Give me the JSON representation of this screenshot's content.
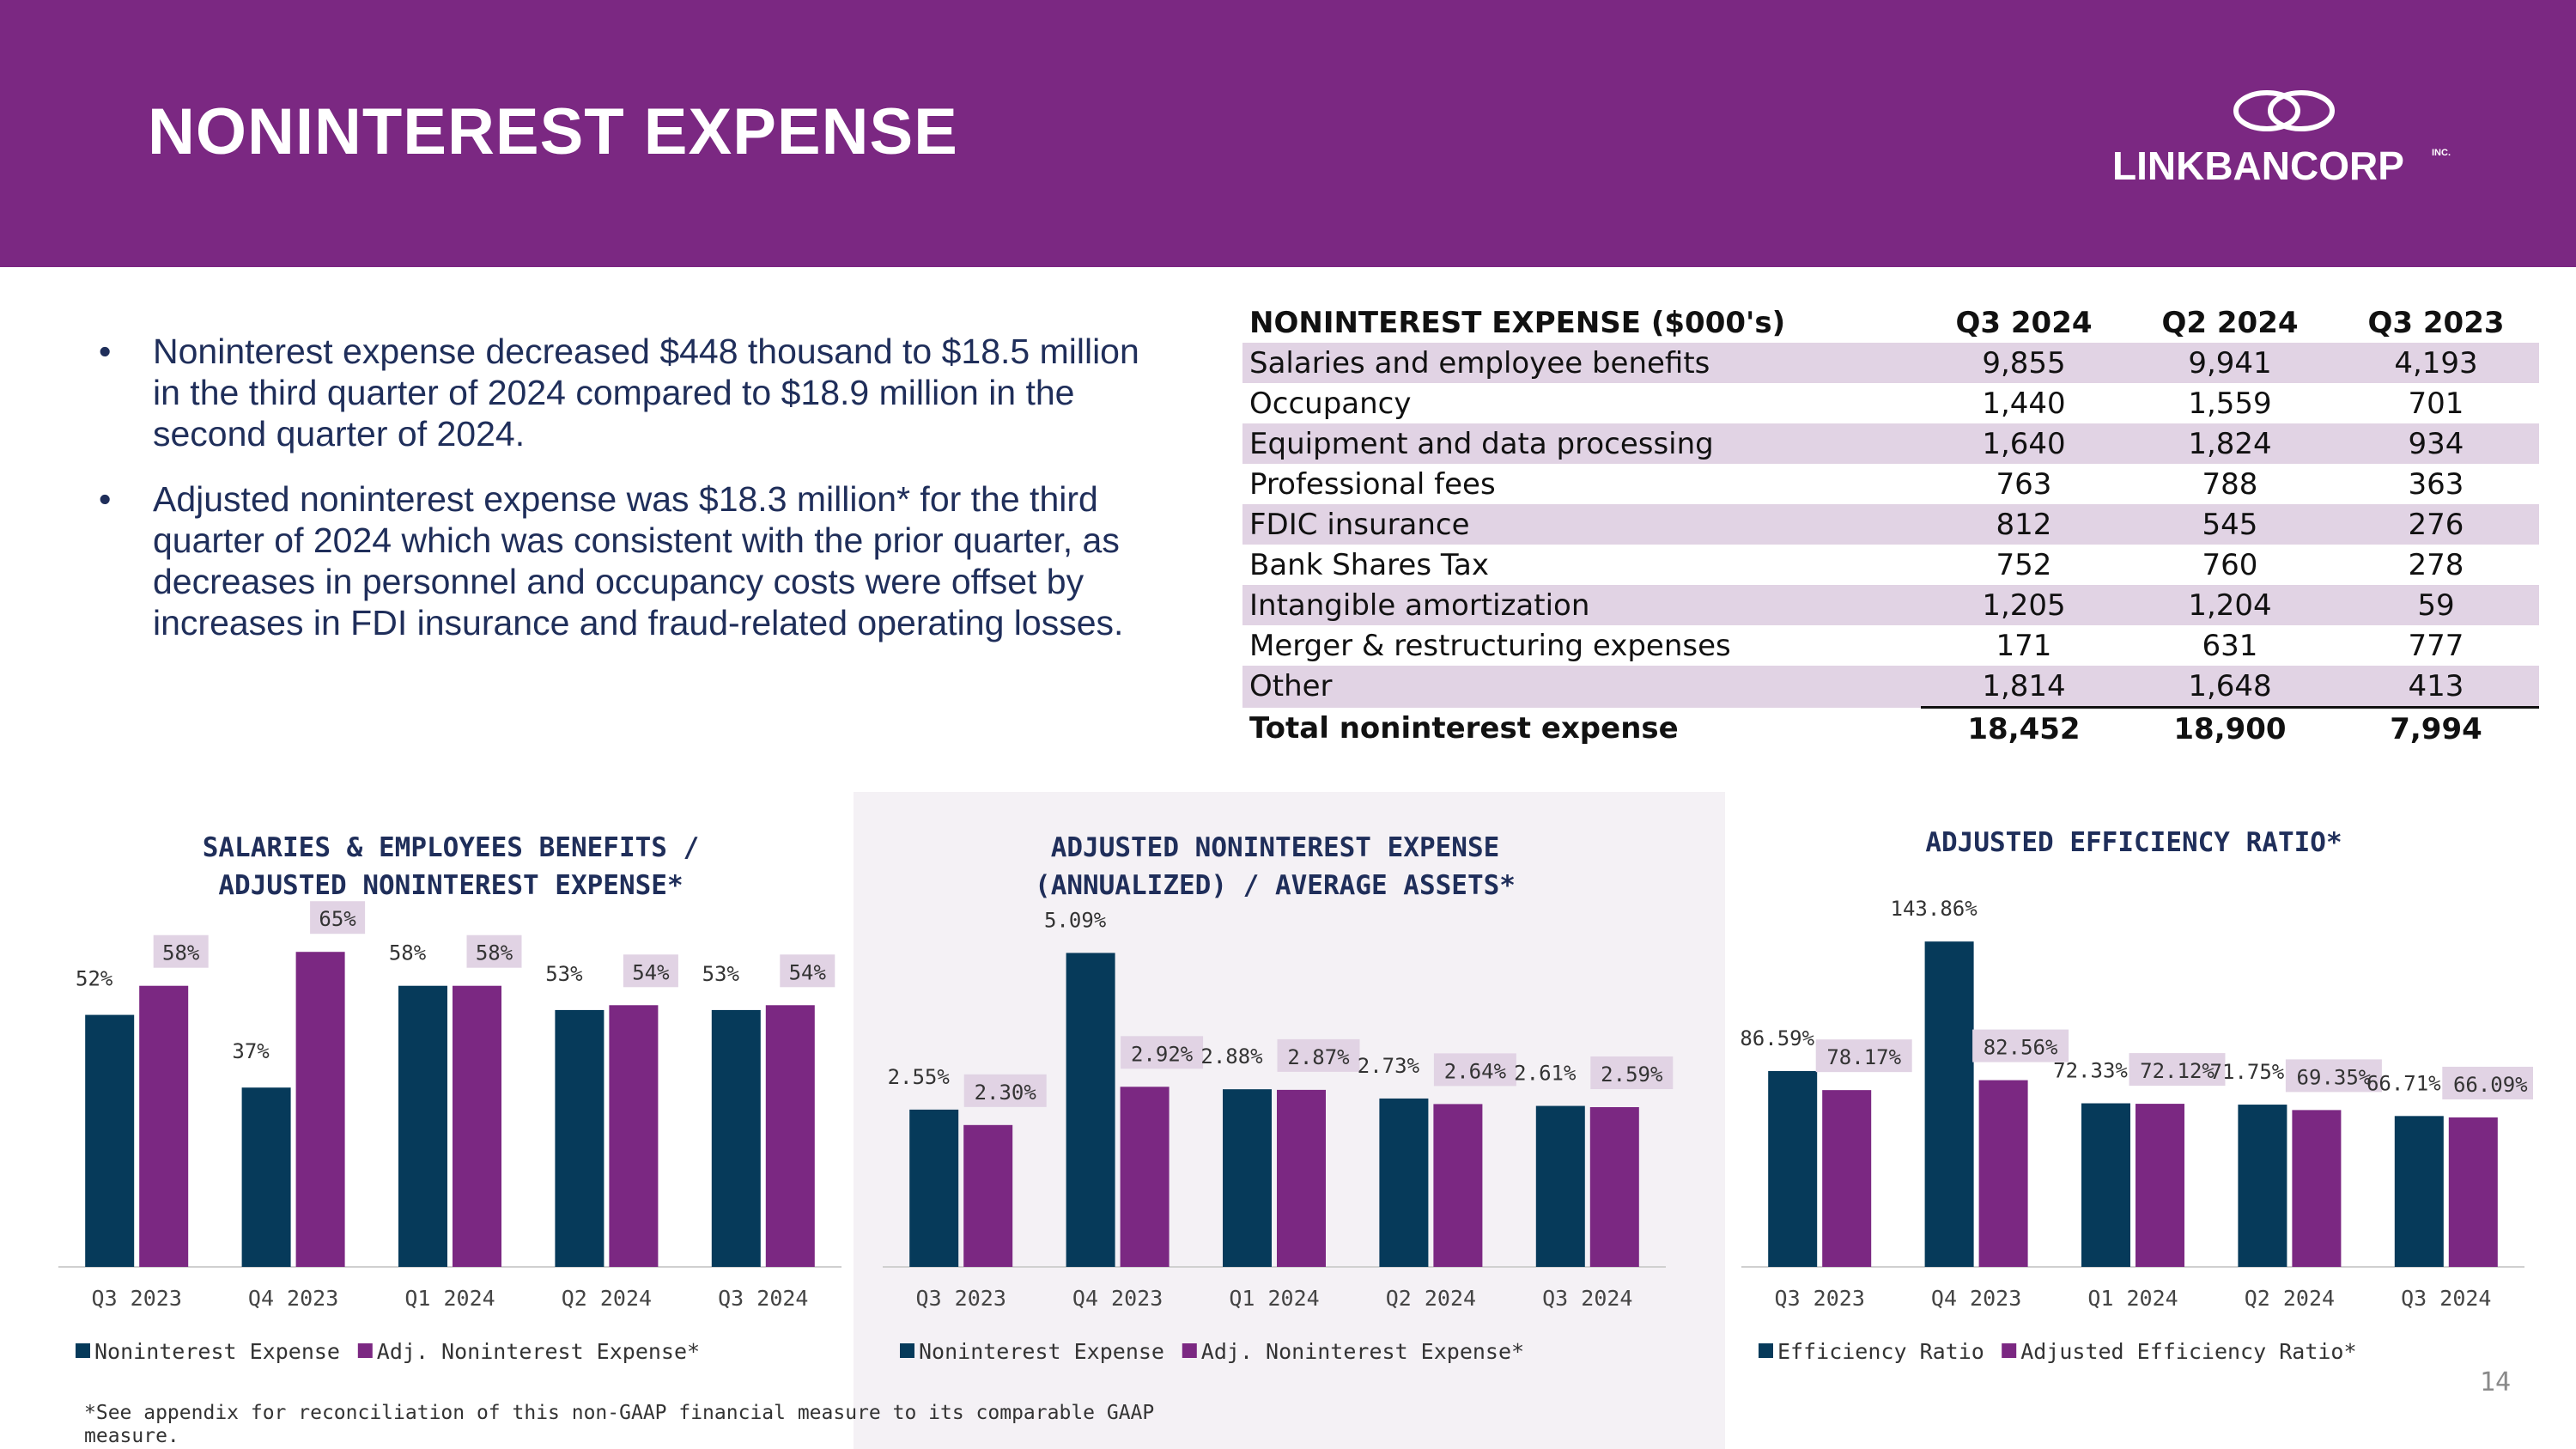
{
  "header": {
    "title": "NONINTEREST EXPENSE",
    "logo_text": "LINKBANCORP",
    "logo_suffix": "INC.",
    "bg_color": "#7B2882"
  },
  "bullets": [
    "Noninterest expense decreased $448 thousand to $18.5 million in the third quarter of 2024 compared to $18.9 million in the second quarter of 2024.",
    "Adjusted noninterest expense was $18.3 million* for the third quarter of 2024 which was consistent with the prior quarter, as decreases in personnel and occupancy costs were offset by increases in FDI insurance and fraud-related operating losses."
  ],
  "expense_table": {
    "headers": [
      "NONINTEREST EXPENSE ($000's)",
      "Q3 2024",
      "Q2 2024",
      "Q3 2023"
    ],
    "rows": [
      {
        "label": "Salaries and employee benefits",
        "values": [
          "9,855",
          "9,941",
          "4,193"
        ]
      },
      {
        "label": "Occupancy",
        "values": [
          "1,440",
          "1,559",
          "701"
        ]
      },
      {
        "label": "Equipment and data processing",
        "values": [
          "1,640",
          "1,824",
          "934"
        ]
      },
      {
        "label": "Professional fees",
        "values": [
          "763",
          "788",
          "363"
        ]
      },
      {
        "label": "FDIC insurance",
        "values": [
          "812",
          "545",
          "276"
        ]
      },
      {
        "label": "Bank Shares Tax",
        "values": [
          "752",
          "760",
          "278"
        ]
      },
      {
        "label": "Intangible amortization",
        "values": [
          "1,205",
          "1,204",
          "59"
        ]
      },
      {
        "label": "Merger & restructuring expenses",
        "values": [
          "171",
          "631",
          "777"
        ]
      },
      {
        "label": "Other",
        "values": [
          "1,814",
          "1,648",
          "413"
        ]
      }
    ],
    "total": {
      "label": "Total noninterest expense",
      "values": [
        "18,452",
        "18,900",
        "7,994"
      ]
    }
  },
  "colors": {
    "navy": "#063A5A",
    "purple": "#7B2882",
    "label_box": "#E1D3E4",
    "text": "#222222"
  },
  "chart_data": [
    {
      "type": "bar",
      "title": [
        "SALARIES & EMPLOYEES BENEFITS /",
        "ADJUSTED NONINTEREST EXPENSE*"
      ],
      "categories": [
        "Q3 2023",
        "Q4 2023",
        "Q1 2024",
        "Q2 2024",
        "Q3 2024"
      ],
      "ylim": [
        0,
        70
      ],
      "unit": "%",
      "series": [
        {
          "name": "Noninterest Expense",
          "values": [
            52,
            37,
            58,
            53,
            53
          ],
          "labels": [
            "52%",
            "37%",
            "58%",
            "53%",
            "53%"
          ],
          "label_box": false
        },
        {
          "name": "Adj. Noninterest Expense*",
          "values": [
            58,
            65,
            58,
            54,
            54
          ],
          "labels": [
            "58%",
            "65%",
            "58%",
            "54%",
            "54%"
          ],
          "label_box": true
        }
      ]
    },
    {
      "type": "bar",
      "title": [
        "ADJUSTED NONINTEREST EXPENSE",
        "(ANNUALIZED) / AVERAGE ASSETS*"
      ],
      "categories": [
        "Q3 2023",
        "Q4 2023",
        "Q1 2024",
        "Q2 2024",
        "Q3 2024"
      ],
      "ylim": [
        0,
        5.5
      ],
      "unit": "%",
      "series": [
        {
          "name": "Noninterest Expense",
          "values": [
            2.55,
            5.09,
            2.88,
            2.73,
            2.61
          ],
          "labels": [
            "2.55%",
            "5.09%",
            "2.88%",
            "2.73%",
            "2.61%"
          ],
          "label_box": false
        },
        {
          "name": "Adj. Noninterest Expense*",
          "values": [
            2.3,
            2.92,
            2.87,
            2.64,
            2.59
          ],
          "labels": [
            "2.30%",
            "2.92%",
            "2.87%",
            "2.64%",
            "2.59%"
          ],
          "label_box": true
        }
      ]
    },
    {
      "type": "bar",
      "title": [
        "ADJUSTED EFFICIENCY RATIO*"
      ],
      "categories": [
        "Q3 2023",
        "Q4 2023",
        "Q1 2024",
        "Q2 2024",
        "Q3 2024"
      ],
      "ylim": [
        0,
        150
      ],
      "unit": "%",
      "series": [
        {
          "name": "Efficiency Ratio",
          "values": [
            86.59,
            143.86,
            72.33,
            71.75,
            66.71
          ],
          "labels": [
            "86.59%",
            "143.86%",
            "72.33%",
            "71.75%",
            "66.71%"
          ],
          "label_box": false
        },
        {
          "name": "Adjusted Efficiency Ratio*",
          "values": [
            78.17,
            82.56,
            72.12,
            69.35,
            66.09
          ],
          "labels": [
            "78.17%",
            "82.56%",
            "72.12%",
            "69.35%",
            "66.09%"
          ],
          "label_box": true
        }
      ]
    }
  ],
  "footnote": "*See appendix for reconciliation of this non-GAAP financial measure to its comparable GAAP measure.",
  "page_number": "14"
}
